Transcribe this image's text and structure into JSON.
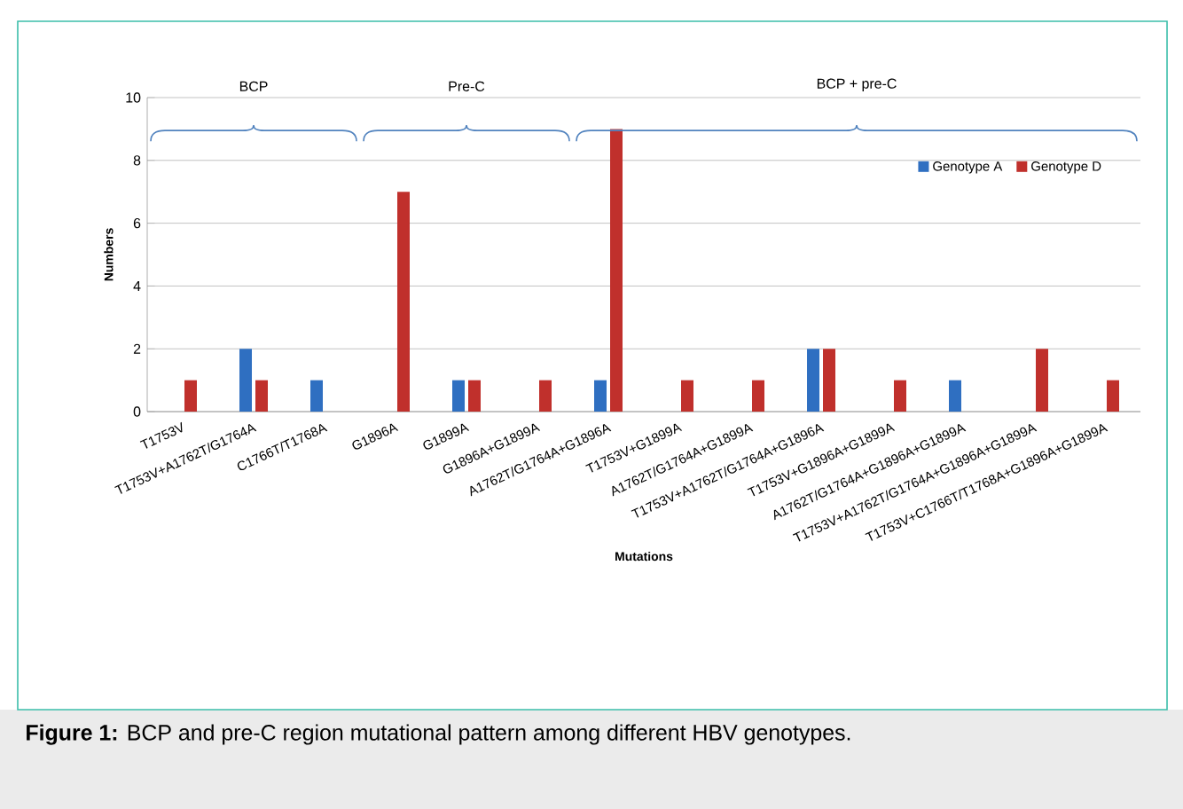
{
  "chart_data": {
    "type": "bar",
    "categories": [
      "T1753V",
      "T1753V+A1762T/G1764A",
      "C1766T/T1768A",
      "G1896A",
      "G1899A",
      "G1896A+G1899A",
      "A1762T/G1764A+G1896A",
      "T1753V+G1899A",
      "A1762T/G1764A+G1899A",
      "T1753V+A1762T/G1764A+G1896A",
      "T1753V+G1896A+G1899A",
      "A1762T/G1764A+G1896A+G1899A",
      "T1753V+A1762T/G1764A+G1896A+G1899A",
      "T1753V+C1766T/T1768A+G1896A+G1899A"
    ],
    "series": [
      {
        "name": "Genotype A",
        "color": "#2f6fc1",
        "values": [
          0,
          2,
          1,
          0,
          1,
          0,
          1,
          0,
          0,
          2,
          0,
          1,
          0,
          0
        ]
      },
      {
        "name": "Genotype D",
        "color": "#c0302c",
        "values": [
          1,
          1,
          0,
          7,
          1,
          1,
          9,
          1,
          1,
          2,
          1,
          0,
          2,
          1
        ]
      }
    ],
    "xlabel": "Mutations",
    "ylabel": "Numbers",
    "ylim": [
      0,
      10
    ],
    "yticks": [
      0,
      2,
      4,
      6,
      8,
      10
    ],
    "grid": "y",
    "legend": "top right",
    "annotations": [
      "BCP",
      "Pre-C",
      "BCP + pre-C",
      "**Figure 1:** BCP and pre-C region mutational pattern among different HBV genotypes."
    ]
  }
}
